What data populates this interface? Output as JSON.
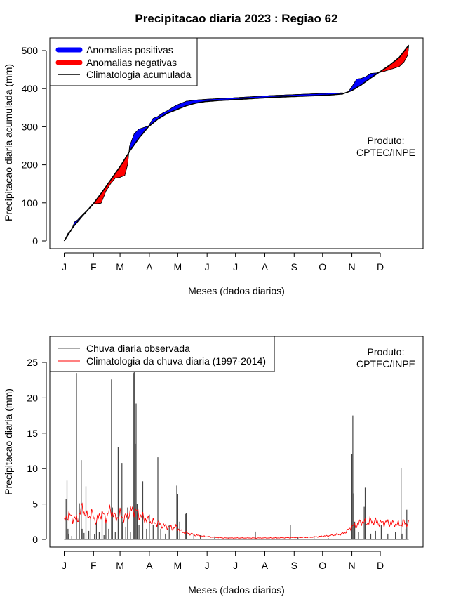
{
  "chart_data": [
    {
      "type": "area",
      "title": "Precipitacao diaria 2023 : Regiao 62",
      "xlabel": "Meses (dados diarios)",
      "ylabel": "Precipitacao diaria acumulada (mm)",
      "ylim": [
        0,
        520
      ],
      "yticks": [
        0,
        100,
        200,
        300,
        400,
        500
      ],
      "ytick_labels": [
        "0",
        "100",
        "200",
        "300",
        "400",
        "500"
      ],
      "month_labels": [
        "J",
        "F",
        "M",
        "A",
        "M",
        "J",
        "J",
        "A",
        "S",
        "O",
        "N",
        "D"
      ],
      "month_start_days": [
        1,
        32,
        60,
        91,
        121,
        152,
        182,
        213,
        244,
        274,
        305,
        335
      ],
      "credit": [
        "Produto:",
        "CPTEC/INPE"
      ],
      "legend": [
        {
          "label": "Anomalias positivas",
          "color": "#0000ff"
        },
        {
          "label": "Anomalias negativas",
          "color": "#ff0000"
        },
        {
          "label": "Climatologia acumulada",
          "color": "#000000"
        }
      ],
      "series": [
        {
          "name": "Climatologia acumulada",
          "x": [
            1,
            10,
            20,
            31,
            40,
            50,
            60,
            70,
            80,
            90,
            100,
            110,
            120,
            130,
            140,
            150,
            165,
            180,
            200,
            220,
            240,
            260,
            280,
            295,
            305,
            315,
            325,
            335,
            345,
            355,
            365
          ],
          "values": [
            0,
            35,
            65,
            95,
            125,
            160,
            195,
            235,
            270,
            300,
            320,
            335,
            345,
            355,
            362,
            366,
            369,
            371,
            374,
            377,
            379,
            381,
            383,
            386,
            395,
            410,
            428,
            445,
            462,
            482,
            514
          ]
        },
        {
          "name": "Observado acumulado",
          "x": [
            1,
            5,
            8,
            12,
            15,
            20,
            25,
            31,
            35,
            40,
            45,
            50,
            55,
            60,
            65,
            68,
            70,
            75,
            80,
            85,
            90,
            95,
            100,
            105,
            110,
            115,
            120,
            125,
            130,
            140,
            150,
            165,
            180,
            200,
            220,
            240,
            260,
            280,
            295,
            300,
            305,
            310,
            315,
            320,
            325,
            330,
            335,
            340,
            345,
            350,
            355,
            360,
            364,
            365
          ],
          "values": [
            0,
            20,
            25,
            50,
            55,
            68,
            80,
            97,
            98,
            99,
            130,
            150,
            165,
            167,
            172,
            200,
            248,
            282,
            294,
            298,
            302,
            322,
            327,
            336,
            342,
            350,
            357,
            362,
            367,
            370,
            372,
            374,
            376,
            379,
            382,
            384,
            386,
            388,
            389,
            388,
            405,
            425,
            427,
            432,
            440,
            441,
            443,
            446,
            450,
            454,
            458,
            470,
            488,
            512
          ]
        }
      ]
    },
    {
      "type": "line",
      "title": "",
      "xlabel": "Meses (dados diarios)",
      "ylabel": "Precipitacao diaria (mm)",
      "ylim": [
        0,
        27
      ],
      "yticks": [
        0,
        5,
        10,
        15,
        20,
        25
      ],
      "ytick_labels": [
        "0",
        "5",
        "10",
        "15",
        "20",
        "25"
      ],
      "month_labels": [
        "J",
        "F",
        "M",
        "A",
        "M",
        "J",
        "J",
        "A",
        "S",
        "O",
        "N",
        "D"
      ],
      "month_start_days": [
        1,
        32,
        60,
        91,
        121,
        152,
        182,
        213,
        244,
        274,
        305,
        335
      ],
      "credit": [
        "Produto:",
        "CPTEC/INPE"
      ],
      "legend": [
        {
          "label": "Chuva diaria observada",
          "color": "#555555"
        },
        {
          "label": "Climatologia da chuva diaria (1997-2014)",
          "color": "#ff0000"
        }
      ],
      "series": [
        {
          "name": "Chuva diaria observada",
          "x": [
            3,
            4,
            5,
            6,
            9,
            14,
            17,
            19,
            20,
            22,
            24,
            27,
            29,
            33,
            35,
            38,
            41,
            43,
            45,
            48,
            51,
            52,
            55,
            58,
            62,
            63,
            66,
            68,
            71,
            74,
            75,
            76,
            77,
            78,
            80,
            84,
            88,
            91,
            95,
            100,
            103,
            108,
            112,
            120,
            121,
            123,
            129,
            130,
            138,
            145,
            160,
            175,
            190,
            203,
            225,
            240,
            248,
            265,
            280,
            305,
            306,
            307,
            308,
            312,
            318,
            319,
            325,
            330,
            336,
            343,
            351,
            357,
            358,
            362,
            363
          ],
          "values": [
            5.7,
            8.3,
            1.5,
            0.8,
            0.5,
            23.5,
            5.1,
            11.2,
            1.5,
            0.9,
            7.5,
            1.2,
            3.1,
            0.7,
            2.5,
            1.0,
            4.0,
            0.6,
            2.7,
            1.5,
            22.6,
            4.5,
            1.0,
            13.0,
            10.8,
            2.5,
            1.8,
            4.5,
            1.0,
            23.5,
            24.0,
            13.5,
            19.2,
            5.0,
            2.0,
            8.2,
            1.5,
            3.5,
            2.0,
            11.6,
            1.5,
            0.8,
            2.0,
            7.6,
            6.4,
            2.5,
            3.6,
            3.7,
            0.8,
            0.6,
            0.4,
            0.4,
            0.3,
            1.1,
            0.4,
            2.0,
            0.3,
            0.3,
            0.2,
            12.0,
            17.5,
            6.5,
            2.5,
            1.0,
            4.6,
            7.3,
            0.8,
            1.2,
            2.0,
            0.8,
            1.0,
            10.1,
            0.8,
            1.5,
            4.2
          ],
          "color": "#444444"
        },
        {
          "name": "Climatologia da chuva diaria (1997-2014)",
          "x": [
            1,
            5,
            10,
            15,
            20,
            25,
            30,
            35,
            40,
            45,
            50,
            55,
            60,
            65,
            70,
            75,
            80,
            85,
            90,
            95,
            100,
            105,
            110,
            115,
            120,
            125,
            130,
            135,
            140,
            150,
            160,
            170,
            180,
            200,
            220,
            240,
            260,
            270,
            280,
            290,
            295,
            300,
            305,
            310,
            315,
            320,
            325,
            330,
            335,
            340,
            345,
            350,
            355,
            360,
            365
          ],
          "values": [
            2.5,
            3.5,
            3.0,
            2.8,
            4.5,
            3.2,
            3.6,
            2.5,
            3.8,
            3.0,
            4.2,
            3.0,
            3.5,
            3.0,
            3.8,
            4.2,
            3.5,
            3.0,
            2.7,
            2.4,
            2.3,
            1.9,
            1.8,
            1.6,
            1.7,
            1.1,
            0.9,
            0.8,
            0.6,
            0.4,
            0.3,
            0.2,
            0.2,
            0.2,
            0.2,
            0.25,
            0.3,
            0.4,
            0.5,
            0.7,
            0.8,
            1.2,
            1.8,
            2.0,
            2.5,
            2.3,
            2.6,
            2.5,
            2.3,
            2.4,
            2.3,
            2.2,
            2.1,
            2.4,
            2.2
          ],
          "color": "#ff0000"
        }
      ]
    }
  ]
}
